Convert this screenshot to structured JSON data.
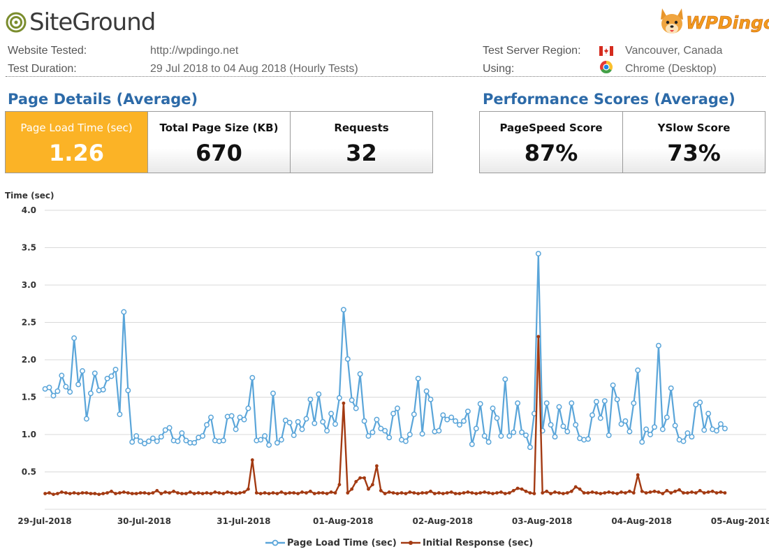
{
  "header": {
    "siteground_logo": "SiteGround",
    "wpdingo_logo": "WPDingo",
    "website_tested_label": "Website Tested:",
    "website_tested_value": "http://wpdingo.net",
    "test_duration_label": "Test Duration:",
    "test_duration_value": "29 Jul 2018 to 04 Aug 2018 (Hourly Tests)",
    "region_label": "Test Server Region:",
    "region_value": "Vancouver, Canada",
    "using_label": "Using:",
    "using_value": "Chrome (Desktop)"
  },
  "page_details": {
    "title": "Page Details (Average)",
    "cards": [
      {
        "label": "Page Load Time (sec)",
        "value": "1.26"
      },
      {
        "label": "Total Page Size (KB)",
        "value": "670"
      },
      {
        "label": "Requests",
        "value": "32"
      }
    ]
  },
  "performance_scores": {
    "title": "Performance Scores (Average)",
    "cards": [
      {
        "label": "PageSpeed Score",
        "value": "87%"
      },
      {
        "label": "YSlow Score",
        "value": "73%"
      }
    ]
  },
  "colors": {
    "highlight": "#fbb326",
    "title_blue": "#2c6aa8",
    "series_load": "#5aa5d9",
    "series_response": "#a33a12"
  },
  "chart_data": {
    "type": "line",
    "title": "",
    "ylabel": "Time (sec)",
    "xlabel": "",
    "ylim": [
      0,
      4.0
    ],
    "yticks": [
      "4.0",
      "3.5",
      "3.0",
      "2.5",
      "2.0",
      "1.5",
      "1.0",
      "0.5"
    ],
    "ytick_values": [
      4.0,
      3.5,
      3.0,
      2.5,
      2.0,
      1.5,
      1.0,
      0.5
    ],
    "x_tick_labels": [
      "29-Jul-2018",
      "30-Jul-2018",
      "31-Jul-2018",
      "01-Aug-2018",
      "02-Aug-2018",
      "03-Aug-2018",
      "04-Aug-2018",
      "05-Aug-2018"
    ],
    "x_start": "29-Jul-2018",
    "x_end": "05-Aug-2018",
    "points_per_day": 24,
    "grid": true,
    "legend_position": "bottom",
    "series": [
      {
        "name": "Page Load Time (sec)",
        "values": [
          1.61,
          1.63,
          1.52,
          1.58,
          1.79,
          1.64,
          1.57,
          2.29,
          1.67,
          1.85,
          1.21,
          1.55,
          1.82,
          1.59,
          1.6,
          1.75,
          1.78,
          1.87,
          1.27,
          2.64,
          1.59,
          0.9,
          0.98,
          0.91,
          0.88,
          0.91,
          0.95,
          0.91,
          0.97,
          1.06,
          1.09,
          0.92,
          0.91,
          1.02,
          0.92,
          0.89,
          0.89,
          0.96,
          0.98,
          1.13,
          1.23,
          0.92,
          0.91,
          0.92,
          1.24,
          1.25,
          1.07,
          1.23,
          1.2,
          1.35,
          1.76,
          0.92,
          0.93,
          0.98,
          0.86,
          1.55,
          0.89,
          0.93,
          1.19,
          1.16,
          0.99,
          1.17,
          1.07,
          1.21,
          1.47,
          1.15,
          1.54,
          1.17,
          1.05,
          1.28,
          1.14,
          1.49,
          2.67,
          2.01,
          1.46,
          1.35,
          1.81,
          1.18,
          0.98,
          1.03,
          1.2,
          1.08,
          1.05,
          0.96,
          1.28,
          1.35,
          0.93,
          0.91,
          1.0,
          1.27,
          1.75,
          1.01,
          1.58,
          1.47,
          1.04,
          1.05,
          1.26,
          1.2,
          1.23,
          1.18,
          1.13,
          1.18,
          1.31,
          0.87,
          1.08,
          1.41,
          0.98,
          0.9,
          1.35,
          1.22,
          0.98,
          1.74,
          0.98,
          1.03,
          1.42,
          1.03,
          0.99,
          0.83,
          1.28,
          3.42,
          1.05,
          1.42,
          1.13,
          0.97,
          1.37,
          1.11,
          1.04,
          1.42,
          1.13,
          0.95,
          0.93,
          0.94,
          1.26,
          1.44,
          1.22,
          1.45,
          0.99,
          1.66,
          1.47,
          1.14,
          1.18,
          1.04,
          1.42,
          1.86,
          0.9,
          1.07,
          1.0,
          1.1,
          2.19,
          1.07,
          1.23,
          1.62,
          1.12,
          0.93,
          0.91,
          1.02,
          0.97,
          1.4,
          1.43,
          1.06,
          1.28,
          1.07,
          1.05,
          1.14,
          1.08
        ]
      },
      {
        "name": "Initial Response (sec)",
        "values": [
          0.21,
          0.22,
          0.2,
          0.21,
          0.23,
          0.22,
          0.21,
          0.22,
          0.21,
          0.22,
          0.22,
          0.21,
          0.21,
          0.2,
          0.21,
          0.22,
          0.24,
          0.21,
          0.22,
          0.23,
          0.22,
          0.21,
          0.21,
          0.22,
          0.22,
          0.21,
          0.22,
          0.25,
          0.21,
          0.23,
          0.22,
          0.24,
          0.22,
          0.21,
          0.21,
          0.23,
          0.21,
          0.22,
          0.21,
          0.22,
          0.21,
          0.23,
          0.22,
          0.21,
          0.23,
          0.22,
          0.21,
          0.22,
          0.23,
          0.27,
          0.66,
          0.22,
          0.21,
          0.22,
          0.21,
          0.22,
          0.21,
          0.23,
          0.21,
          0.22,
          0.22,
          0.21,
          0.23,
          0.22,
          0.24,
          0.21,
          0.22,
          0.22,
          0.21,
          0.23,
          0.22,
          0.33,
          1.42,
          0.22,
          0.27,
          0.37,
          0.42,
          0.42,
          0.27,
          0.33,
          0.58,
          0.25,
          0.21,
          0.23,
          0.22,
          0.21,
          0.22,
          0.21,
          0.23,
          0.22,
          0.21,
          0.22,
          0.22,
          0.24,
          0.21,
          0.22,
          0.21,
          0.22,
          0.23,
          0.21,
          0.21,
          0.22,
          0.23,
          0.22,
          0.21,
          0.22,
          0.23,
          0.22,
          0.21,
          0.22,
          0.23,
          0.21,
          0.22,
          0.25,
          0.28,
          0.27,
          0.24,
          0.22,
          0.21,
          2.31,
          0.22,
          0.24,
          0.21,
          0.23,
          0.22,
          0.21,
          0.22,
          0.24,
          0.3,
          0.27,
          0.22,
          0.22,
          0.23,
          0.22,
          0.21,
          0.22,
          0.23,
          0.22,
          0.21,
          0.23,
          0.22,
          0.24,
          0.22,
          0.46,
          0.24,
          0.22,
          0.23,
          0.24,
          0.23,
          0.21,
          0.25,
          0.22,
          0.24,
          0.26,
          0.22,
          0.22,
          0.23,
          0.22,
          0.25,
          0.22,
          0.23,
          0.24,
          0.22,
          0.23,
          0.22
        ]
      }
    ]
  }
}
